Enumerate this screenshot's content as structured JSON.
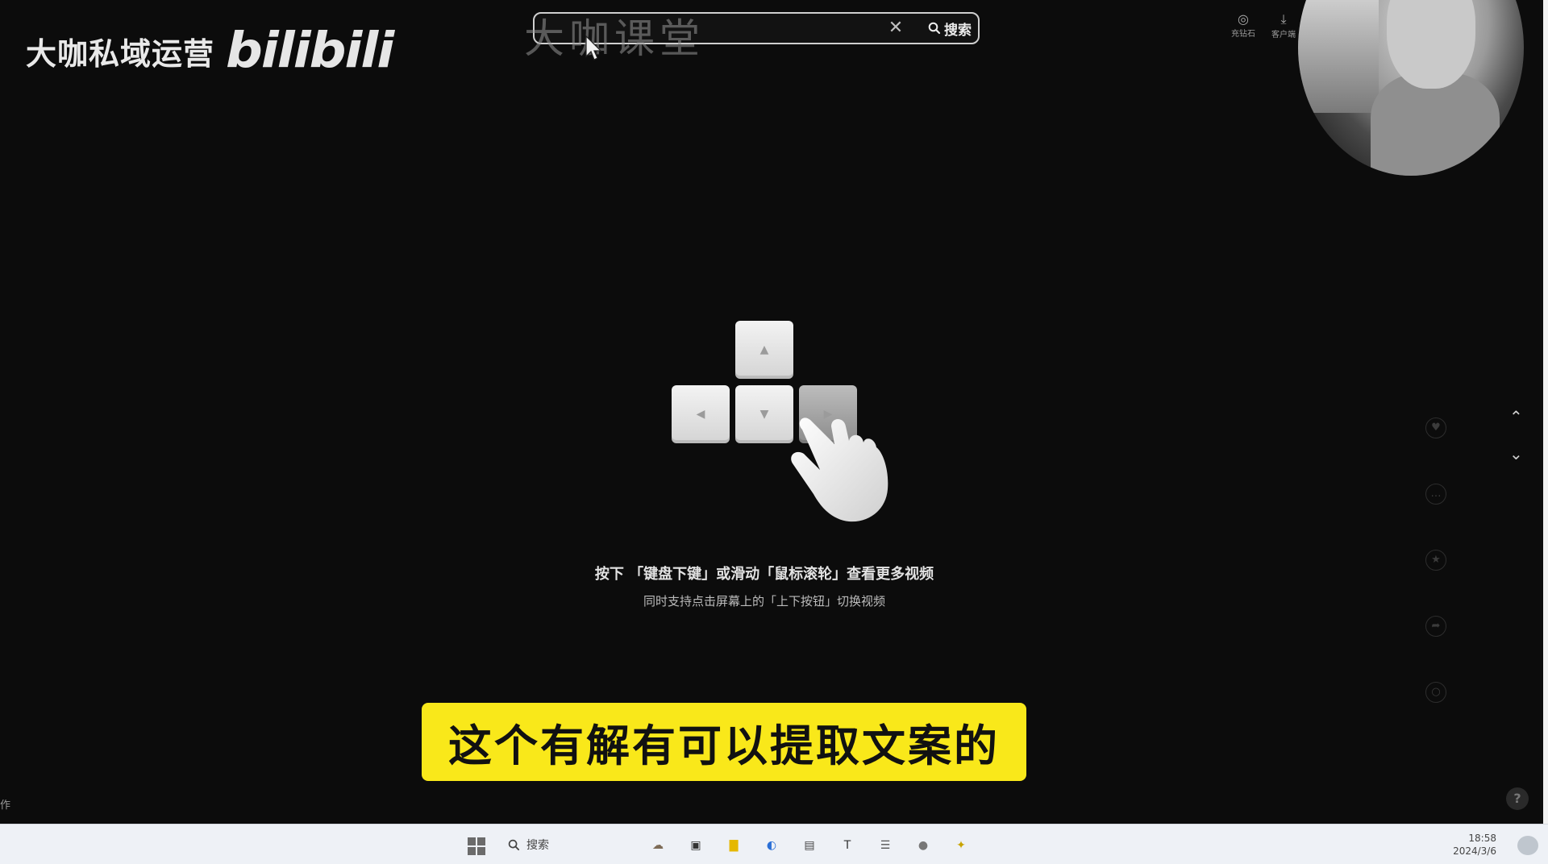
{
  "watermark": {
    "text": "大咖私域运营",
    "brand": "bilibili"
  },
  "search": {
    "value": "",
    "overlay_text": "大咖课堂",
    "clear_glyph": "✕",
    "button_label": "搜索"
  },
  "top_icons": [
    {
      "label": "充钻石",
      "icon": "diamond-icon",
      "glyph": "◎"
    },
    {
      "label": "客户端",
      "icon": "download-icon",
      "glyph": "⤓"
    }
  ],
  "keys": {
    "up": "▲",
    "left": "◀",
    "down": "▼",
    "right": "▶"
  },
  "instructions": {
    "main": "按下 「键盘下键」或滑动「鼠标滚轮」查看更多视频",
    "sub": "同时支持点击屏幕上的「上下按钮」切换视频"
  },
  "nav": {
    "up": "⌃",
    "down": "⌄"
  },
  "side_actions": [
    {
      "name": "like",
      "glyph": "♥"
    },
    {
      "name": "comment",
      "glyph": "…"
    },
    {
      "name": "favorite",
      "glyph": "★"
    },
    {
      "name": "share",
      "glyph": "➦"
    },
    {
      "name": "more",
      "glyph": "○"
    }
  ],
  "help_label": "?",
  "subtitle": "这个有解有可以提取文案的",
  "edge_char": "作",
  "taskbar": {
    "search_label": "搜索",
    "time": "18:58",
    "date": "2024/3/6",
    "apps": [
      {
        "name": "widgets",
        "glyph": "☁",
        "color": "#7d6b56"
      },
      {
        "name": "task-view",
        "glyph": "▣",
        "color": "#333333"
      },
      {
        "name": "file-explorer",
        "glyph": "▇",
        "color": "#e5b800"
      },
      {
        "name": "edge",
        "glyph": "◐",
        "color": "#2a6fd6"
      },
      {
        "name": "store",
        "glyph": "▤",
        "color": "#444444"
      },
      {
        "name": "typora",
        "glyph": "T",
        "color": "#333333"
      },
      {
        "name": "notepad",
        "glyph": "☰",
        "color": "#555555"
      },
      {
        "name": "recorder",
        "glyph": "●",
        "color": "#777777"
      },
      {
        "name": "paint",
        "glyph": "✦",
        "color": "#c8a400"
      }
    ]
  }
}
